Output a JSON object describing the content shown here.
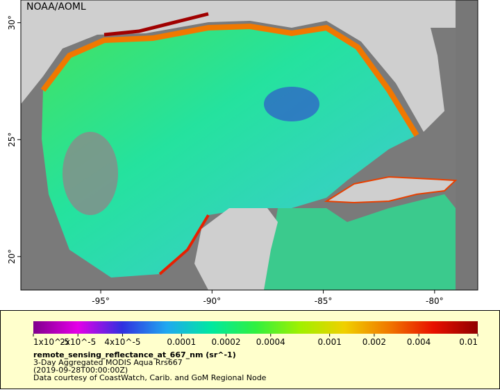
{
  "map": {
    "watermark": "NOAA/AOML",
    "lonlim": [
      -98.59,
      -78.06
    ],
    "latlim": [
      18.57,
      30.97
    ],
    "xticks": [
      {
        "value": -95,
        "label": "-95°"
      },
      {
        "value": -90,
        "label": "-90°"
      },
      {
        "value": -85,
        "label": "-85°"
      },
      {
        "value": -80,
        "label": "-80°"
      }
    ],
    "yticks": [
      {
        "value": 30,
        "label": "30°"
      },
      {
        "value": 25,
        "label": "25°"
      },
      {
        "value": 20,
        "label": "20°"
      }
    ]
  },
  "colorbar": {
    "scale": "log",
    "lim": [
      1e-05,
      0.01
    ],
    "ticks": [
      {
        "value": 1e-05,
        "label": "1x10^-5"
      },
      {
        "value": 2e-05,
        "label": "2x10^-5"
      },
      {
        "value": 4e-05,
        "label": "4x10^-5"
      },
      0.0001,
      0.0002,
      0.0004,
      0.001,
      0.002,
      0.004,
      0.01
    ],
    "colors": [
      "#80008c",
      "#e400e8",
      "#3030e0",
      "#20a8f0",
      "#00e8a0",
      "#30f040",
      "#a0f000",
      "#f0d000",
      "#f07800",
      "#e81000",
      "#900000"
    ]
  },
  "legend": {
    "variable": "remote_sensing_reflectance_at_667_nm (sr^-1)",
    "lines": [
      "3-Day Aggregated MODIS Aqua Rrs667",
      "(2019-09-28T00:00:00Z)",
      "Data courtesy of CoastWatch, Carib. and GoM Regional Node"
    ]
  }
}
